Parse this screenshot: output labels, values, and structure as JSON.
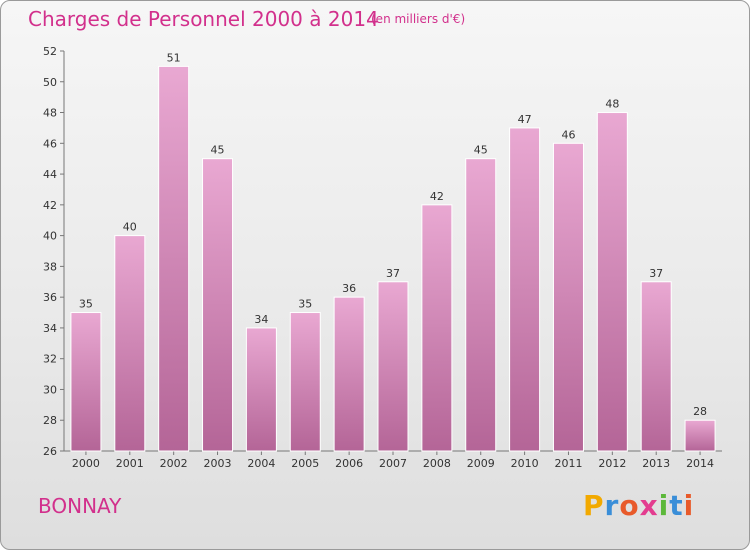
{
  "header": {
    "title": "Charges de Personnel 2000 à 2014",
    "subtitle": "(en milliers d'€)"
  },
  "commune": "BONNAY",
  "logo": {
    "letters": [
      "P",
      "r",
      "o",
      "x",
      "i",
      "t",
      "i"
    ],
    "colors": [
      "#f2a900",
      "#3a8ed8",
      "#e85a2a",
      "#e33c8f",
      "#5cb83a",
      "#3a8ed8",
      "#e85a2a"
    ]
  },
  "colors": {
    "bar_top": "#e9a8d2",
    "bar_bottom": "#b46597",
    "text_accent": "#d2308c"
  },
  "chart_data": {
    "type": "bar",
    "title": "Charges de Personnel 2000 à 2014",
    "subtitle": "(en milliers d'€)",
    "categories": [
      "2000",
      "2001",
      "2002",
      "2003",
      "2004",
      "2005",
      "2006",
      "2007",
      "2008",
      "2009",
      "2010",
      "2011",
      "2012",
      "2013",
      "2014"
    ],
    "values": [
      35,
      40,
      51,
      45,
      34,
      35,
      36,
      37,
      42,
      45,
      47,
      46,
      48,
      37,
      28
    ],
    "ylim": [
      26,
      52
    ],
    "yticks": [
      26,
      28,
      30,
      32,
      34,
      36,
      38,
      40,
      42,
      44,
      46,
      48,
      50,
      52
    ],
    "grid": false,
    "legend": "none"
  }
}
